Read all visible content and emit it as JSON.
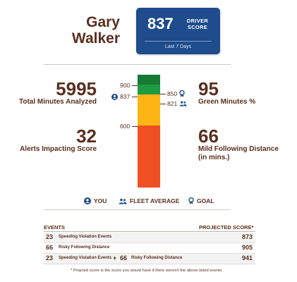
{
  "driver": {
    "first_name": "Gary",
    "last_name": "Walker"
  },
  "score_box": {
    "score": "837",
    "label_line1": "DRIVER",
    "label_line2": "SCORE",
    "period": "Last 7 Days",
    "bg_color": "#1e4c8c"
  },
  "stats": {
    "total_minutes": {
      "value": "5995",
      "label": "Total Minutes Analyzed"
    },
    "alerts": {
      "value": "32",
      "label": "Alerts Impacting Score"
    },
    "green_minutes": {
      "value": "95",
      "label": "Green Minutes %"
    },
    "mild_following": {
      "value": "66",
      "label_line1": "Mild Following Distance",
      "label_line2": "(in mins.)"
    }
  },
  "gauge": {
    "tick_900": "900",
    "tick_600": "600",
    "you_value": "837",
    "goal_value": "850",
    "fleet_value": "821",
    "colors": {
      "green": "#1a8a3c",
      "yellow": "#fcb514",
      "red": "#f04e23"
    }
  },
  "legend": {
    "you": "YOU",
    "fleet": "FLEET AVERAGE",
    "goal": "GOAL"
  },
  "table": {
    "events_header": "EVENTS",
    "projected_header": "PROJECTED SCORE*",
    "rows": [
      {
        "count": "23",
        "description": "Speeding Violation Events",
        "score": "873"
      },
      {
        "count": "66",
        "description": "Risky Following Distance",
        "score": "905"
      },
      {
        "count": "23",
        "description": "Speeding Violation Events",
        "plus": "+",
        "count2": "66",
        "description2": "Risky Following Distance",
        "score": "941"
      }
    ]
  },
  "footnote": "* Projcted score is the score you would have if there weren't the above listed events."
}
